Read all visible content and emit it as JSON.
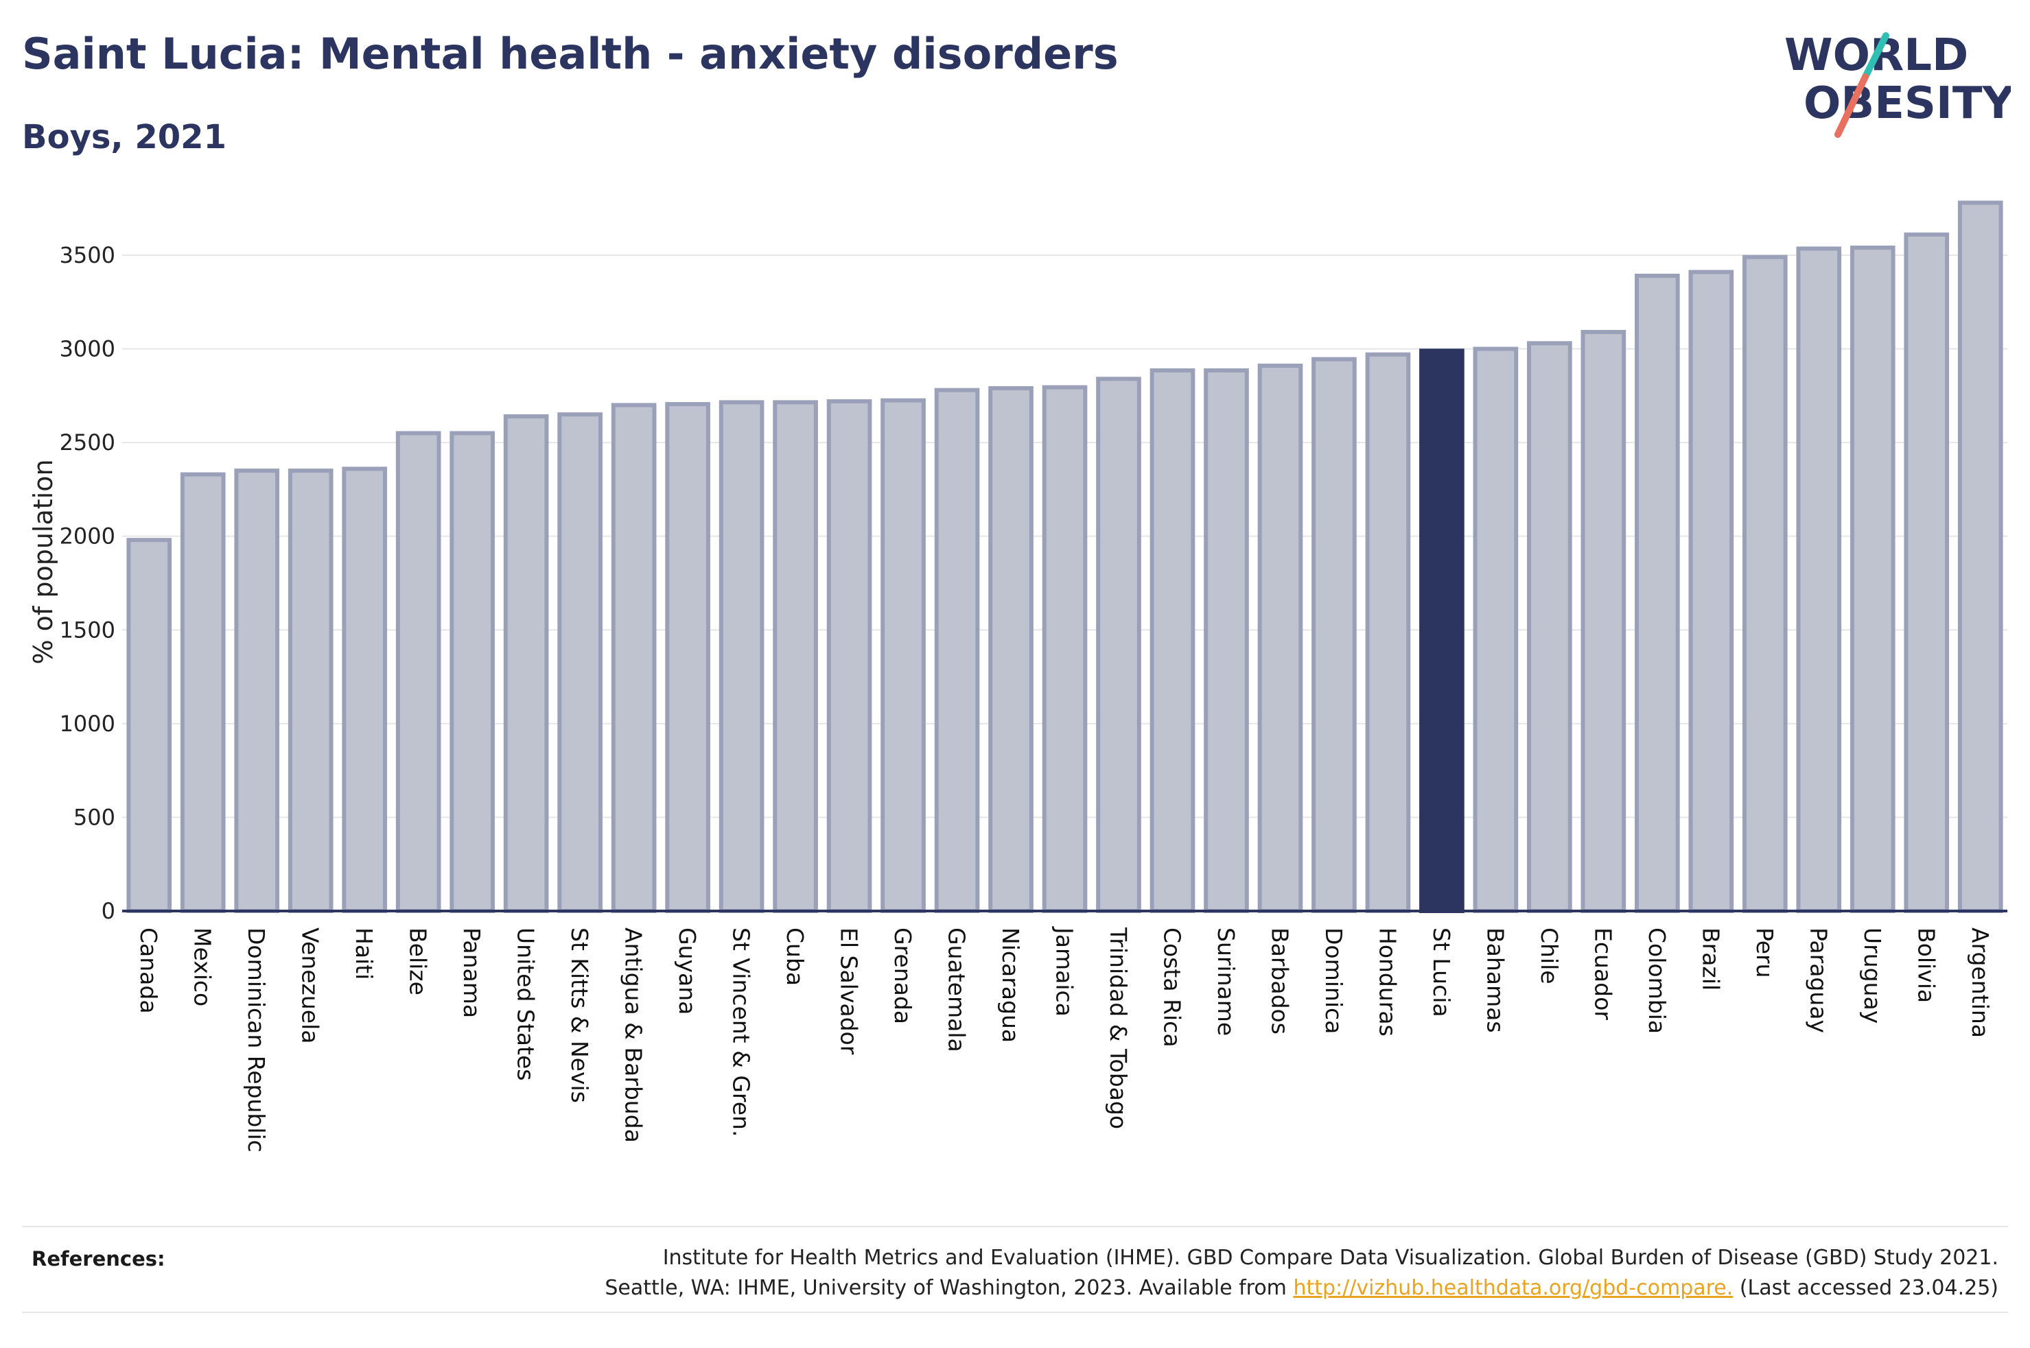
{
  "header": {
    "title": "Saint Lucia: Mental health - anxiety disorders",
    "subtitle": "Boys, 2021"
  },
  "logo": {
    "line1": "WORLD",
    "line2": "OBESITY"
  },
  "colors": {
    "bar_default": "#bfc3d0",
    "bar_border": "#9aa0b8",
    "bar_highlight": "#2b3560",
    "title": "#2b3560",
    "logo_teal": "#2fbfb3",
    "logo_coral": "#e8705f",
    "link": "#e8a321"
  },
  "chart_data": {
    "type": "bar",
    "title": "Saint Lucia: Mental health - anxiety disorders",
    "subtitle": "Boys, 2021",
    "ylabel": "% of population",
    "xlabel": "",
    "ylim": [
      0,
      3800
    ],
    "yticks": [
      0,
      500,
      1000,
      1500,
      2000,
      2500,
      3000,
      3500
    ],
    "grid": true,
    "highlight": "St Lucia",
    "categories": [
      "Canada",
      "Mexico",
      "Dominican Republic",
      "Venezuela",
      "Haiti",
      "Belize",
      "Panama",
      "United States",
      "St Kitts & Nevis",
      "Antigua & Barbuda",
      "Guyana",
      "St Vincent & Gren.",
      "Cuba",
      "El Salvador",
      "Grenada",
      "Guatemala",
      "Nicaragua",
      "Jamaica",
      "Trinidad & Tobago",
      "Costa Rica",
      "Suriname",
      "Barbados",
      "Dominica",
      "Honduras",
      "St Lucia",
      "Bahamas",
      "Chile",
      "Ecuador",
      "Colombia",
      "Brazil",
      "Peru",
      "Paraguay",
      "Uruguay",
      "Bolivia",
      "Argentina"
    ],
    "values": [
      1980,
      2330,
      2350,
      2350,
      2360,
      2550,
      2550,
      2640,
      2650,
      2700,
      2705,
      2715,
      2715,
      2720,
      2725,
      2780,
      2790,
      2795,
      2840,
      2885,
      2885,
      2910,
      2945,
      2970,
      2990,
      3000,
      3030,
      3090,
      3390,
      3410,
      3490,
      3535,
      3540,
      3610,
      3780
    ]
  },
  "references": {
    "label": "References:",
    "line1": "Institute for Health Metrics and Evaluation (IHME). GBD Compare Data Visualization. Global Burden of Disease (GBD) Study 2021.",
    "line2_prefix": "Seattle, WA: IHME, University of Washington, 2023. Available from ",
    "link": "http://vizhub.healthdata.org/gbd-compare.",
    "line2_suffix": " (Last accessed 23.04.25)"
  }
}
